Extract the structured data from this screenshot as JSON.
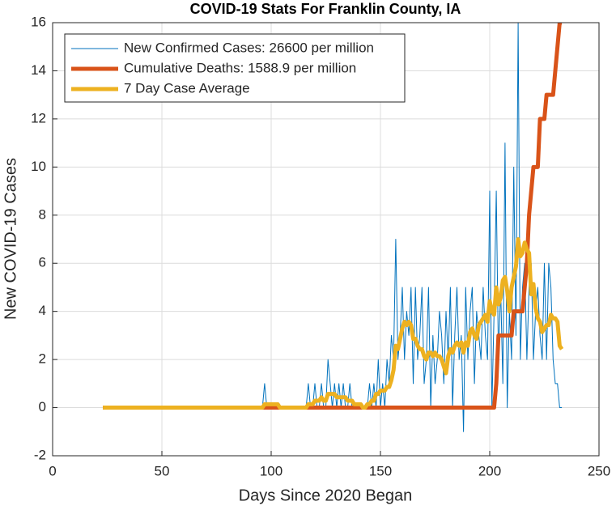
{
  "chart_data": {
    "type": "line",
    "title": "COVID-19 Stats For Franklin County, IA",
    "x_label": "Days Since 2020 Began",
    "y_label": "New COVID-19 Cases",
    "xlim": [
      0,
      250
    ],
    "xticks": [
      0,
      50,
      100,
      150,
      200,
      250
    ],
    "ylim": [
      -2,
      16
    ],
    "yticks": [
      -2,
      0,
      2,
      4,
      6,
      8,
      10,
      12,
      14,
      16
    ],
    "grid": true,
    "legend": "top-left",
    "x": [
      23,
      24,
      25,
      26,
      27,
      28,
      29,
      30,
      31,
      32,
      33,
      34,
      35,
      36,
      37,
      38,
      39,
      40,
      41,
      42,
      43,
      44,
      45,
      46,
      47,
      48,
      49,
      50,
      51,
      52,
      53,
      54,
      55,
      56,
      57,
      58,
      59,
      60,
      61,
      62,
      63,
      64,
      65,
      66,
      67,
      68,
      69,
      70,
      71,
      72,
      73,
      74,
      75,
      76,
      77,
      78,
      79,
      80,
      81,
      82,
      83,
      84,
      85,
      86,
      87,
      88,
      89,
      90,
      91,
      92,
      93,
      94,
      95,
      96,
      97,
      98,
      99,
      100,
      101,
      102,
      103,
      104,
      105,
      106,
      107,
      108,
      109,
      110,
      111,
      112,
      113,
      114,
      115,
      116,
      117,
      118,
      119,
      120,
      121,
      122,
      123,
      124,
      125,
      126,
      127,
      128,
      129,
      130,
      131,
      132,
      133,
      134,
      135,
      136,
      137,
      138,
      139,
      140,
      141,
      142,
      143,
      144,
      145,
      146,
      147,
      148,
      149,
      150,
      151,
      152,
      153,
      154,
      155,
      156,
      157,
      158,
      159,
      160,
      161,
      162,
      163,
      164,
      165,
      166,
      167,
      168,
      169,
      170,
      171,
      172,
      173,
      174,
      175,
      176,
      177,
      178,
      179,
      180,
      181,
      182,
      183,
      184,
      185,
      186,
      187,
      188,
      189,
      190,
      191,
      192,
      193,
      194,
      195,
      196,
      197,
      198,
      199,
      200,
      201,
      202,
      203,
      204,
      205,
      206,
      207,
      208,
      209,
      210,
      211,
      212,
      213,
      214,
      215,
      216,
      217,
      218,
      219,
      220,
      221,
      222,
      223,
      224,
      225,
      226,
      227,
      228,
      229,
      230,
      231,
      232,
      233
    ],
    "series": [
      {
        "name": "New Confirmed Cases: 26600 per million",
        "color": "#0072bd",
        "width": 1,
        "values": [
          0,
          0,
          0,
          0,
          0,
          0,
          0,
          0,
          0,
          0,
          0,
          0,
          0,
          0,
          0,
          0,
          0,
          0,
          0,
          0,
          0,
          0,
          0,
          0,
          0,
          0,
          0,
          0,
          0,
          0,
          0,
          0,
          0,
          0,
          0,
          0,
          0,
          0,
          0,
          0,
          0,
          0,
          0,
          0,
          0,
          0,
          0,
          0,
          0,
          0,
          0,
          0,
          0,
          0,
          0,
          0,
          0,
          0,
          0,
          0,
          0,
          0,
          0,
          0,
          0,
          0,
          0,
          0,
          0,
          0,
          0,
          0,
          0,
          0,
          1,
          0,
          0,
          0,
          0,
          0,
          0,
          0,
          0,
          0,
          0,
          0,
          0,
          0,
          0,
          0,
          0,
          0,
          0,
          0,
          1,
          0,
          0,
          1,
          0,
          0,
          1,
          0,
          0,
          2,
          1,
          0,
          1,
          0,
          1,
          0,
          1,
          0,
          0,
          1,
          0,
          0,
          0,
          0,
          0,
          0,
          0,
          0,
          1,
          0,
          1,
          0,
          2,
          0,
          1,
          0,
          2,
          1,
          3,
          2,
          7,
          2,
          3,
          5,
          2,
          4,
          3,
          5,
          1,
          5,
          2,
          3,
          5,
          1,
          2,
          5,
          0,
          3,
          1,
          2,
          4,
          3,
          1,
          4,
          2,
          5,
          0,
          3,
          5,
          2,
          3,
          -1,
          5,
          2,
          4,
          5,
          1,
          4,
          3,
          2,
          5,
          3,
          2,
          9,
          0,
          4,
          9,
          2,
          5,
          1,
          11,
          0,
          4,
          2,
          10,
          3,
          16,
          2,
          5,
          6,
          2,
          5,
          6,
          2,
          4,
          5,
          3,
          2,
          6,
          2,
          6,
          5,
          2,
          1,
          1,
          0,
          0
        ]
      },
      {
        "name": "Cumulative Deaths: 1588.9 per million",
        "color": "#d95319",
        "width": 5,
        "values": [
          0,
          0,
          0,
          0,
          0,
          0,
          0,
          0,
          0,
          0,
          0,
          0,
          0,
          0,
          0,
          0,
          0,
          0,
          0,
          0,
          0,
          0,
          0,
          0,
          0,
          0,
          0,
          0,
          0,
          0,
          0,
          0,
          0,
          0,
          0,
          0,
          0,
          0,
          0,
          0,
          0,
          0,
          0,
          0,
          0,
          0,
          0,
          0,
          0,
          0,
          0,
          0,
          0,
          0,
          0,
          0,
          0,
          0,
          0,
          0,
          0,
          0,
          0,
          0,
          0,
          0,
          0,
          0,
          0,
          0,
          0,
          0,
          0,
          0,
          0,
          0,
          0,
          0,
          0,
          0,
          0,
          0,
          0,
          0,
          0,
          0,
          0,
          0,
          0,
          0,
          0,
          0,
          0,
          0,
          0,
          0,
          0,
          0,
          0,
          0,
          0,
          0,
          0,
          0,
          0,
          0,
          0,
          0,
          0,
          0,
          0,
          0,
          0,
          0,
          0,
          0,
          0,
          0,
          0,
          0,
          0,
          0,
          0,
          0,
          0,
          0,
          0,
          0,
          0,
          0,
          0,
          0,
          0,
          0,
          0,
          0,
          0,
          0,
          0,
          0,
          0,
          0,
          0,
          0,
          0,
          0,
          0,
          0,
          0,
          0,
          0,
          0,
          0,
          0,
          0,
          0,
          0,
          0,
          0,
          0,
          0,
          0,
          0,
          0,
          0,
          0,
          0,
          0,
          0,
          0,
          0,
          0,
          0,
          0,
          0,
          0,
          0,
          0,
          0,
          0,
          1,
          3,
          3,
          3,
          3,
          3,
          3,
          3,
          4,
          4,
          4,
          4,
          4,
          5,
          6,
          8,
          9,
          10,
          10,
          10,
          12,
          12,
          12,
          13,
          13,
          13,
          13,
          14,
          15,
          16,
          16
        ]
      },
      {
        "name": "7 Day Case Average",
        "color": "#edb120",
        "width": 5,
        "values": [
          0,
          0,
          0,
          0,
          0,
          0,
          0,
          0,
          0,
          0,
          0,
          0,
          0,
          0,
          0,
          0,
          0,
          0,
          0,
          0,
          0,
          0,
          0,
          0,
          0,
          0,
          0,
          0,
          0,
          0,
          0,
          0,
          0,
          0,
          0,
          0,
          0,
          0,
          0,
          0,
          0,
          0,
          0,
          0,
          0,
          0,
          0,
          0,
          0,
          0,
          0,
          0,
          0,
          0,
          0,
          0,
          0,
          0,
          0,
          0,
          0,
          0,
          0,
          0,
          0,
          0,
          0,
          0,
          0,
          0,
          0,
          0,
          0,
          0,
          0.14,
          0.14,
          0.14,
          0.14,
          0.14,
          0.14,
          0.14,
          0,
          0,
          0,
          0,
          0,
          0,
          0,
          0,
          0,
          0,
          0,
          0,
          0,
          0.14,
          0.14,
          0.14,
          0.29,
          0.29,
          0.29,
          0.43,
          0.29,
          0.29,
          0.57,
          0.57,
          0.57,
          0.57,
          0.43,
          0.43,
          0.43,
          0.43,
          0.43,
          0.29,
          0.29,
          0.29,
          0.14,
          0.14,
          0.14,
          0.14,
          0,
          0,
          0.14,
          0.14,
          0.29,
          0.29,
          0.57,
          0.57,
          0.71,
          0.71,
          0.71,
          0.86,
          0.86,
          1.14,
          1.57,
          2.57,
          2.43,
          2.86,
          3.29,
          3.57,
          3.43,
          3.57,
          3.43,
          2.86,
          2.86,
          2.57,
          2.43,
          2.43,
          2.14,
          2,
          2.29,
          2.29,
          2.14,
          2.29,
          2.14,
          2.14,
          2,
          1.71,
          1.43,
          2.14,
          2.43,
          2.29,
          2.57,
          2.71,
          2.57,
          2.71,
          2.29,
          2.71,
          2.57,
          3.14,
          3.29,
          3,
          2.86,
          3.43,
          3.57,
          3.71,
          3.86,
          3.57,
          4.43,
          4,
          3.86,
          5,
          4.29,
          4.57,
          5.29,
          5.43,
          4.86,
          4,
          5,
          5.43,
          5.86,
          7,
          6.29,
          6.43,
          6.86,
          6.57,
          6.43,
          4.71,
          5.14,
          4.14,
          3.71,
          3.57,
          3.14,
          3.29,
          3.43,
          3.43,
          3.86,
          3.71,
          3.71,
          3.57,
          2.57,
          2.43
        ]
      }
    ]
  }
}
